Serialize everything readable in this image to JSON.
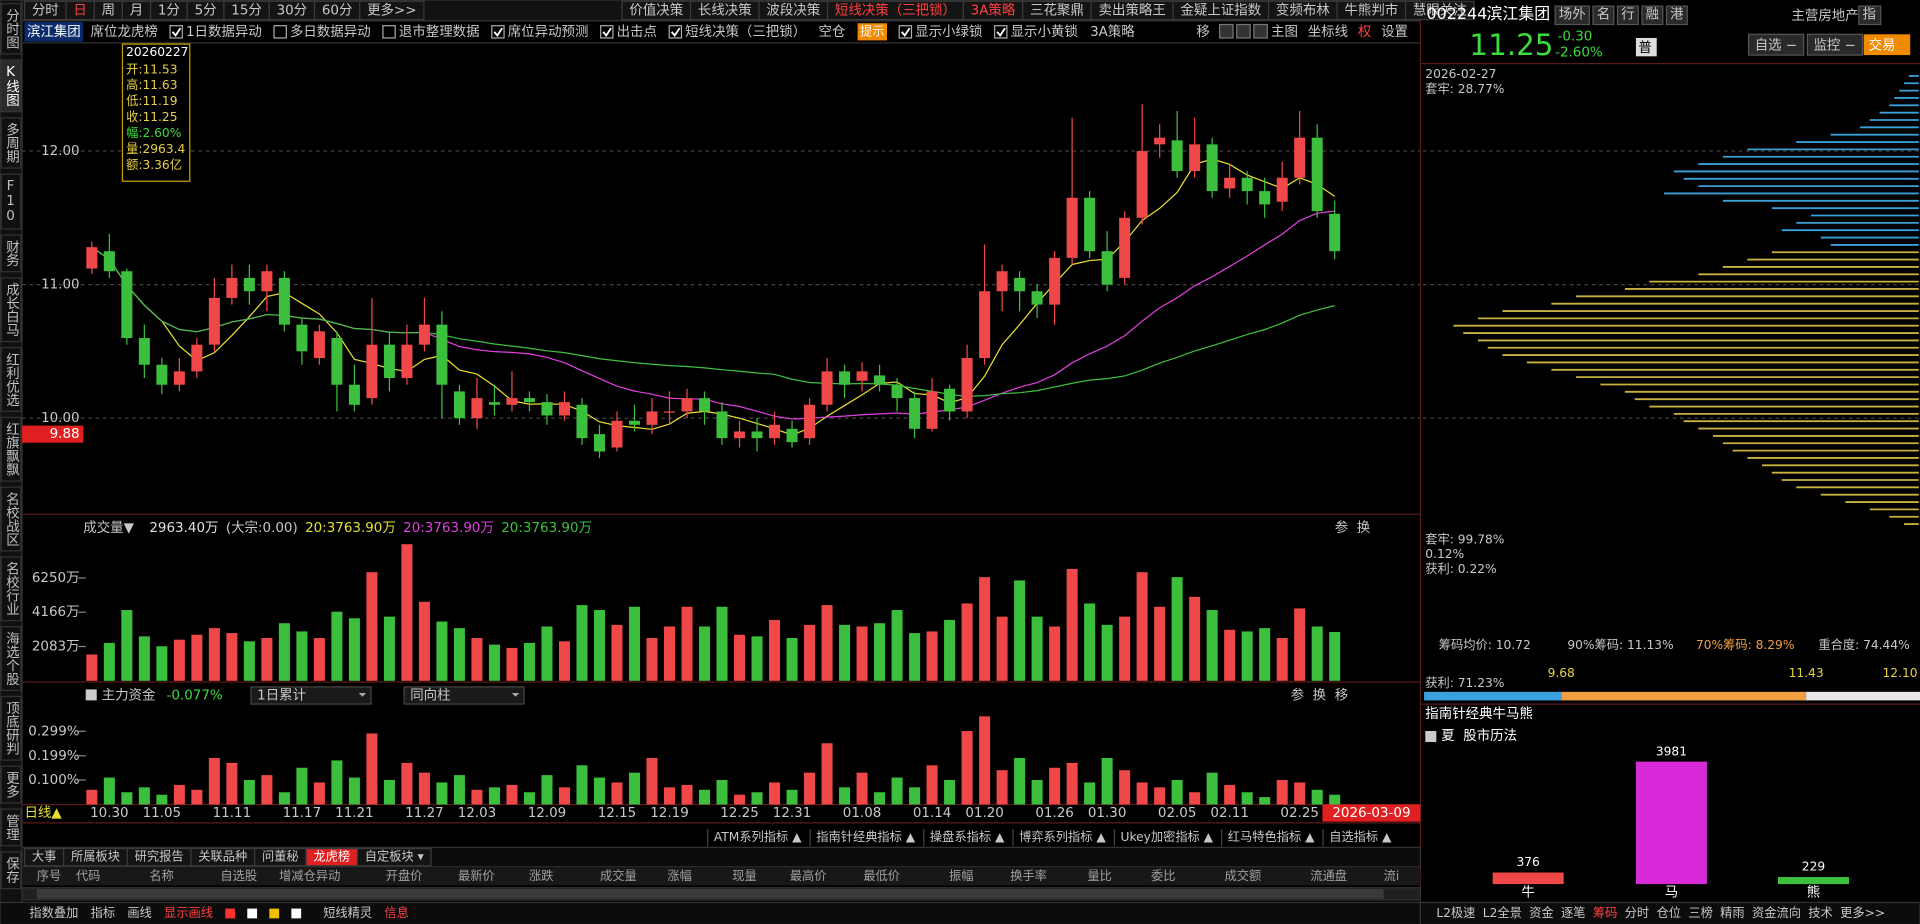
{
  "left_tabs": [
    "分时图",
    "K线图",
    "多周期",
    "F10",
    "财务",
    "成长白马",
    "红利优选",
    "红旗飘飘",
    "名校战区",
    "名校行业",
    "海选个股",
    "顶底研判",
    "更多",
    "管理",
    "保存"
  ],
  "period_tabs": [
    "分时",
    "日",
    "周",
    "月",
    "1分",
    "5分",
    "15分",
    "30分",
    "60分",
    "更多>>"
  ],
  "strategy_tabs": [
    "价值决策",
    "长线决策",
    "波段决策",
    "短线决策（三把锁）",
    "3A策略",
    "三花聚鼎",
    "卖出策略王",
    "金疑上证指数",
    "变频布林",
    "牛熊判市",
    "慧眼关注"
  ],
  "option_bar": {
    "stock_name": "滨江集团",
    "items": [
      "席位龙虎榜",
      {
        "label": "1日数据异动",
        "checked": true
      },
      {
        "label": "多日数据异动",
        "checked": false
      },
      {
        "label": "退市整理数据",
        "checked": false
      },
      {
        "label": "席位异动预测",
        "checked": true
      },
      {
        "label": "出击点",
        "checked": true
      },
      {
        "label": "短线决策（三把锁）",
        "checked": true
      },
      "空仓",
      "提示",
      {
        "label": "显示小绿锁",
        "checked": true
      },
      {
        "label": "显示小黄锁",
        "checked": true
      },
      "3A策略"
    ],
    "right": [
      "移",
      "主图",
      "坐标线",
      "权",
      "设置"
    ]
  },
  "tooltip": {
    "date": "20260227",
    "rows": [
      "开:11.53",
      "高:11.63",
      "低:11.19",
      "收:11.25",
      "幅:2.60%",
      "量:2963.4",
      "额:3.36亿"
    ]
  },
  "chart_data": {
    "type": "candlestick",
    "categories": [
      null,
      "10.30",
      null,
      null,
      "11.05",
      null,
      null,
      null,
      "11.11",
      null,
      null,
      null,
      "11.17",
      null,
      null,
      "11.21",
      null,
      null,
      null,
      "11.27",
      null,
      null,
      "12.03",
      null,
      null,
      null,
      "12.09",
      null,
      null,
      null,
      "12.15",
      null,
      null,
      "12.19",
      null,
      null,
      null,
      "12.25",
      null,
      null,
      "12.31",
      null,
      null,
      null,
      "01.08",
      null,
      null,
      null,
      "01.14",
      null,
      null,
      "01.20",
      null,
      null,
      null,
      "01.26",
      null,
      null,
      "01.30",
      null,
      null,
      null,
      "02.05",
      null,
      null,
      "02.11",
      null,
      null,
      null,
      "02.25",
      null,
      null
    ],
    "ohlc": [
      [
        11.12,
        11.32,
        11.08,
        11.28
      ],
      [
        11.25,
        11.38,
        11.05,
        11.1
      ],
      [
        11.1,
        11.12,
        10.55,
        10.6
      ],
      [
        10.6,
        10.7,
        10.3,
        10.4
      ],
      [
        10.4,
        10.45,
        10.18,
        10.25
      ],
      [
        10.25,
        10.45,
        10.2,
        10.35
      ],
      [
        10.35,
        10.6,
        10.3,
        10.55
      ],
      [
        10.55,
        11.05,
        10.5,
        10.9
      ],
      [
        10.9,
        11.15,
        10.85,
        11.05
      ],
      [
        11.05,
        11.15,
        10.85,
        10.95
      ],
      [
        10.95,
        11.15,
        10.8,
        11.1
      ],
      [
        11.05,
        11.1,
        10.65,
        10.7
      ],
      [
        10.7,
        10.75,
        10.4,
        10.5
      ],
      [
        10.45,
        10.7,
        10.4,
        10.65
      ],
      [
        10.6,
        10.65,
        10.05,
        10.25
      ],
      [
        10.25,
        10.4,
        10.05,
        10.1
      ],
      [
        10.15,
        10.9,
        10.1,
        10.55
      ],
      [
        10.55,
        10.65,
        10.2,
        10.3
      ],
      [
        10.3,
        10.7,
        10.25,
        10.55
      ],
      [
        10.55,
        10.9,
        10.5,
        10.7
      ],
      [
        10.7,
        10.8,
        10.0,
        10.25
      ],
      [
        10.2,
        10.25,
        9.95,
        10.0
      ],
      [
        10.0,
        10.3,
        9.92,
        10.15
      ],
      [
        10.12,
        10.25,
        10.02,
        10.1
      ],
      [
        10.1,
        10.35,
        10.05,
        10.15
      ],
      [
        10.15,
        10.2,
        10.05,
        10.12
      ],
      [
        10.12,
        10.18,
        9.95,
        10.02
      ],
      [
        10.02,
        10.2,
        9.98,
        10.12
      ],
      [
        10.1,
        10.15,
        9.8,
        9.85
      ],
      [
        9.88,
        9.95,
        9.7,
        9.75
      ],
      [
        9.78,
        10.05,
        9.75,
        9.98
      ],
      [
        9.98,
        10.1,
        9.9,
        9.95
      ],
      [
        9.95,
        10.15,
        9.88,
        10.05
      ],
      [
        10.05,
        10.2,
        9.95,
        10.05
      ],
      [
        10.05,
        10.22,
        10.0,
        10.15
      ],
      [
        10.15,
        10.2,
        9.95,
        10.05
      ],
      [
        10.05,
        10.12,
        9.8,
        9.85
      ],
      [
        9.85,
        9.98,
        9.78,
        9.9
      ],
      [
        9.9,
        10.0,
        9.75,
        9.85
      ],
      [
        9.85,
        10.05,
        9.8,
        9.95
      ],
      [
        9.92,
        9.98,
        9.78,
        9.82
      ],
      [
        9.85,
        10.15,
        9.8,
        10.1
      ],
      [
        10.1,
        10.45,
        10.05,
        10.35
      ],
      [
        10.35,
        10.4,
        10.15,
        10.25
      ],
      [
        10.28,
        10.42,
        10.2,
        10.35
      ],
      [
        10.32,
        10.4,
        10.2,
        10.25
      ],
      [
        10.25,
        10.3,
        10.05,
        10.15
      ],
      [
        10.15,
        10.2,
        9.85,
        9.92
      ],
      [
        9.92,
        10.3,
        9.9,
        10.2
      ],
      [
        10.22,
        10.25,
        9.98,
        10.05
      ],
      [
        10.05,
        10.55,
        10.0,
        10.45
      ],
      [
        10.45,
        11.3,
        10.4,
        10.95
      ],
      [
        10.95,
        11.15,
        10.8,
        11.1
      ],
      [
        11.05,
        11.1,
        10.8,
        10.95
      ],
      [
        10.95,
        11.0,
        10.75,
        10.85
      ],
      [
        10.85,
        11.25,
        10.7,
        11.2
      ],
      [
        11.2,
        12.25,
        11.15,
        11.65
      ],
      [
        11.65,
        11.7,
        11.2,
        11.25
      ],
      [
        11.25,
        11.4,
        10.95,
        11.0
      ],
      [
        11.05,
        11.55,
        11.0,
        11.5
      ],
      [
        11.5,
        12.35,
        11.45,
        12.0
      ],
      [
        12.05,
        12.2,
        11.95,
        12.1
      ],
      [
        12.08,
        12.3,
        11.8,
        11.85
      ],
      [
        11.85,
        12.25,
        11.8,
        12.05
      ],
      [
        12.05,
        12.1,
        11.65,
        11.7
      ],
      [
        11.72,
        11.9,
        11.65,
        11.8
      ],
      [
        11.8,
        11.85,
        11.6,
        11.7
      ],
      [
        11.7,
        11.8,
        11.5,
        11.6
      ],
      [
        11.62,
        11.92,
        11.55,
        11.8
      ],
      [
        11.8,
        12.3,
        11.75,
        12.1
      ],
      [
        12.1,
        12.2,
        11.5,
        11.55
      ],
      [
        11.53,
        11.63,
        11.19,
        11.25
      ]
    ],
    "ylim": [
      9.28,
      12.81
    ],
    "yticks": [
      {
        "value": 10,
        "label": "10.00"
      },
      {
        "value": 11,
        "label": "11.00"
      },
      {
        "value": 12,
        "label": "12.00"
      }
    ],
    "grid": true,
    "axis_marker": {
      "value": 9.88,
      "label": "9.88"
    },
    "up_color": "#f04848",
    "down_color": "#3cbf3c",
    "x_end_label": "2026-03-09",
    "x_axis_title": "日线▲",
    "volume": {
      "title": "成交量▼",
      "header": [
        "2963.40万",
        "(大宗:0.00)",
        "20:3763.90万",
        "20:3763.90万",
        "20:3763.90万"
      ],
      "values": [
        1600,
        2300,
        4300,
        2700,
        2100,
        2500,
        2800,
        3200,
        2900,
        2400,
        2600,
        3500,
        3000,
        2600,
        4200,
        3800,
        6600,
        3900,
        8300,
        4800,
        3600,
        3200,
        2600,
        2200,
        2000,
        2300,
        3300,
        2400,
        4600,
        4300,
        3400,
        4500,
        2600,
        3300,
        4500,
        3300,
        4500,
        2800,
        2700,
        3700,
        2600,
        3400,
        4600,
        3400,
        3300,
        3500,
        4300,
        2900,
        3000,
        3700,
        4700,
        6300,
        3900,
        6100,
        3900,
        3300,
        6800,
        4700,
        3400,
        3900,
        6600,
        4500,
        6300,
        5100,
        4300,
        3100,
        3000,
        3200,
        2600,
        4400,
        3300,
        2963.4
      ],
      "ylim": [
        0,
        8481
      ],
      "yticks": [
        {
          "value": 2083,
          "label": "2083万"
        },
        {
          "value": 4166,
          "label": "4166万"
        },
        {
          "value": 6250,
          "label": "6250万"
        }
      ],
      "icons": [
        "参",
        "换"
      ]
    },
    "flow": {
      "title": "主力资金",
      "change": "-0.077%",
      "dropdowns": [
        "1日累计",
        "同向柱"
      ],
      "values": [
        0.06,
        0.11,
        0.05,
        0.07,
        0.04,
        0.08,
        0.06,
        0.19,
        0.17,
        0.1,
        0.12,
        0.05,
        0.15,
        0.09,
        0.18,
        0.11,
        0.29,
        0.1,
        0.17,
        0.13,
        0.09,
        0.12,
        0.06,
        0.07,
        0.08,
        0.05,
        0.12,
        0.07,
        0.16,
        0.11,
        0.09,
        0.13,
        0.19,
        0.07,
        0.08,
        0.06,
        0.1,
        0.04,
        0.05,
        0.09,
        0.06,
        0.13,
        0.25,
        0.07,
        0.13,
        0.05,
        0.11,
        0.07,
        0.16,
        0.1,
        0.3,
        0.36,
        0.14,
        0.19,
        0.1,
        0.15,
        0.17,
        0.09,
        0.19,
        0.14,
        0.09,
        0.07,
        0.1,
        0.05,
        0.13,
        0.08,
        0.05,
        0.03,
        0.1,
        0.09,
        0.06,
        0.04
      ],
      "ylim": [
        0,
        0.395
      ],
      "yticks": [
        {
          "value": 0.1,
          "label": "0.100%"
        },
        {
          "value": 0.199,
          "label": "0.199%"
        },
        {
          "value": 0.299,
          "label": "0.299%"
        }
      ],
      "icons": [
        "参",
        "换",
        "移"
      ]
    }
  },
  "indicator_tabs": [
    "ATM系列指标 ▲",
    "指南针经典指标 ▲",
    "操盘系指标 ▲",
    "博弈系列指标 ▲",
    "Ukey加密指标 ▲",
    "红马特色指标 ▲",
    "自选指标 ▲"
  ],
  "bottom_tabs": [
    "大事",
    "所属板块",
    "研究报告",
    "关联品种",
    "问董秘",
    "龙虎榜",
    "自定板块 ▾"
  ],
  "table_headers": [
    "序号",
    "代码",
    "名称",
    "自选股",
    "增减仓异动",
    "开盘价",
    "最新价",
    "涨跌",
    "成交量",
    "涨幅",
    "现量",
    "最高价",
    "最低价",
    "振幅",
    "换手率",
    "量比",
    "委比",
    "成交额",
    "流通盘",
    "流i"
  ],
  "status_bar": [
    "指数叠加",
    "指标",
    "画线",
    "显示画线",
    "短线精灵",
    "信息"
  ],
  "stock": {
    "code": "002244",
    "name": "滨江集团",
    "tags": [
      "场外",
      "名",
      "行",
      "融",
      "港"
    ],
    "sector": "主营房地产",
    "index_btn": "指",
    "price": "11.25",
    "change": "-0.30",
    "pct": "-2.60%",
    "badge": "普",
    "buttons": [
      "自选 −",
      "监控 −"
    ],
    "trade": "交易"
  },
  "chips": {
    "date": "2026-02-27",
    "top": "套牢: 28.77%",
    "stats": [
      "套牢: 99.78%",
      "0.12%",
      "获利: 0.22%"
    ],
    "summary": [
      "筹码均价: 10.72",
      "90%筹码: 11.13%",
      "70%筹码: 8.29%",
      "重合度: 74.44%"
    ],
    "profit": "获利: 71.23%",
    "range": [
      "9.68",
      "11.43",
      "12.10"
    ],
    "distribution": [
      2,
      3,
      4,
      5,
      6,
      8,
      10,
      12,
      18,
      25,
      35,
      40,
      45,
      50,
      48,
      45,
      52,
      40,
      30,
      22,
      25,
      28,
      20,
      18,
      30,
      35,
      40,
      45,
      55,
      60,
      70,
      75,
      85,
      90,
      95,
      93,
      90,
      88,
      85,
      80,
      75,
      70,
      65,
      60,
      58,
      55,
      50,
      48,
      45,
      42,
      40,
      38,
      35,
      32,
      30,
      28,
      25,
      20,
      15,
      10,
      6,
      3
    ],
    "colors": [
      "#3a9fd8",
      "#c8b040"
    ]
  },
  "bull_bear": {
    "title": "指南针经典牛马熊",
    "season": "夏",
    "calendar": "股市历法",
    "categories": [
      "牛",
      "马",
      "熊"
    ],
    "values": [
      376,
      3981,
      229
    ],
    "colors": [
      "#f04848",
      "#d82ad8",
      "#3cbf3c"
    ]
  },
  "right_bottom_tabs": [
    "L2极速",
    "L2全景",
    "资金",
    "逐笔",
    "筹码",
    "分时",
    "仓位",
    "三榜",
    "精雨",
    "资金流向",
    "技术",
    "更多>>"
  ]
}
